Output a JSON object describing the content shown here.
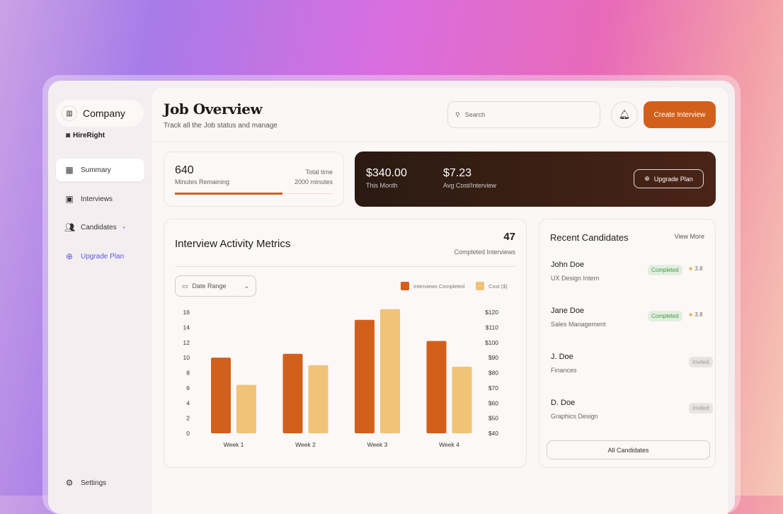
{
  "sidebar": {
    "company": "Company",
    "brand": "HireRight",
    "items": [
      {
        "label": "Summary",
        "icon": "grid-icon"
      },
      {
        "label": "Interviews",
        "icon": "id-card-icon"
      },
      {
        "label": "Candidates",
        "icon": "users-icon"
      },
      {
        "label": "Upgrade Plan",
        "icon": "arrow-up-circle-icon"
      }
    ],
    "settings": "Settings"
  },
  "header": {
    "title": "Job Overview",
    "subtitle": "Track all the Job status and manage",
    "search_placeholder": "Search",
    "create_label": "Create Interview"
  },
  "minutes": {
    "value": "640",
    "label": "Minutes Remaining",
    "total_label": "Total time",
    "total_value": "2000 minutes",
    "progress_percent": 68
  },
  "billing": {
    "month_value": "$340.00",
    "month_label": "This Month",
    "avg_value": "$7.23",
    "avg_label": "Avg Cost/Interview",
    "upgrade_label": "Upgrade Plan"
  },
  "metrics": {
    "title": "Interview Activity Metrics",
    "count": "47",
    "count_label": "Completed Interviews",
    "date_range": "Date Range"
  },
  "colors": {
    "accent": "#d2601c",
    "cost": "#f0c377"
  },
  "chart_data": {
    "type": "bar",
    "categories": [
      "Week 1",
      "Week 2",
      "Week 3",
      "Week 4"
    ],
    "series": [
      {
        "name": "Interviews Completed",
        "values": [
          10,
          10.5,
          15,
          12.2
        ],
        "axis": "left"
      },
      {
        "name": "Cost ($)",
        "values": [
          72,
          85,
          122,
          84
        ],
        "axis": "right"
      }
    ],
    "left_ticks": [
      "0",
      "2",
      "4",
      "6",
      "8",
      "10",
      "12",
      "14",
      "16"
    ],
    "right_ticks": [
      "$40",
      "$50",
      "$60",
      "$70",
      "$80",
      "$90",
      "$100",
      "$110",
      "$120"
    ],
    "ylim_left": [
      0,
      16
    ],
    "ylim_right": [
      40,
      120
    ],
    "legend": "top-right",
    "grid": false
  },
  "candidates": {
    "title": "Recent Candidates",
    "view_more": "View More",
    "all_label": "All Candidates",
    "items": [
      {
        "name": "John Doe",
        "role": "UX Design Intern",
        "status": "Completed",
        "rating": "3.8"
      },
      {
        "name": "Jane Doe",
        "role": "Sales Management",
        "status": "Completed",
        "rating": "3.8"
      },
      {
        "name": "J. Doe",
        "role": "Finances",
        "status": "Invited"
      },
      {
        "name": "D. Doe",
        "role": "Graphics Design",
        "status": "Invited"
      }
    ]
  }
}
